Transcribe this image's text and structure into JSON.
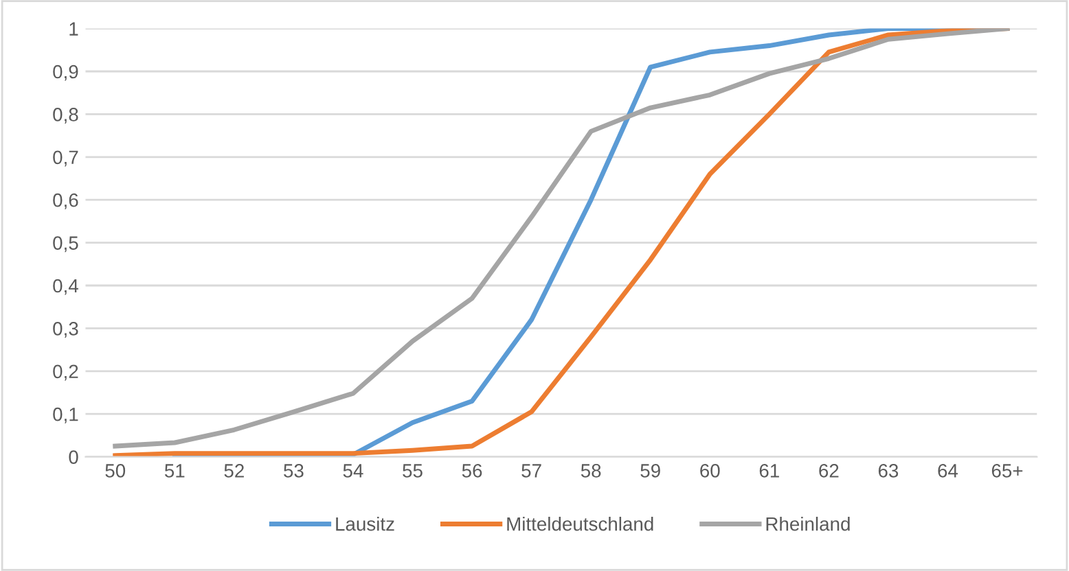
{
  "chart_data": {
    "type": "line",
    "categories": [
      "50",
      "51",
      "52",
      "53",
      "54",
      "55",
      "56",
      "57",
      "58",
      "59",
      "60",
      "61",
      "62",
      "63",
      "64",
      "65+"
    ],
    "series": [
      {
        "name": "Lausitz",
        "color": "#5b9bd5",
        "values": [
          null,
          0.005,
          0.005,
          0.005,
          0.005,
          0.08,
          0.13,
          0.32,
          0.6,
          0.91,
          0.945,
          0.96,
          0.985,
          1.0,
          1.0,
          1.0
        ]
      },
      {
        "name": "Mitteldeutschland",
        "color": "#ed7d31",
        "values": [
          0.003,
          0.008,
          0.008,
          0.008,
          0.008,
          0.015,
          0.025,
          0.105,
          0.28,
          0.46,
          0.66,
          0.8,
          0.945,
          0.985,
          0.995,
          1.0
        ]
      },
      {
        "name": "Rheinland",
        "color": "#a5a5a5",
        "values": [
          0.025,
          0.033,
          0.063,
          0.105,
          0.148,
          0.27,
          0.37,
          0.56,
          0.76,
          0.815,
          0.845,
          0.895,
          0.93,
          0.975,
          0.988,
          1.0
        ]
      }
    ],
    "ylim": [
      0,
      1
    ],
    "yticks": [
      {
        "value": 0,
        "label": "0"
      },
      {
        "value": 0.1,
        "label": "0,1"
      },
      {
        "value": 0.2,
        "label": "0,2"
      },
      {
        "value": 0.3,
        "label": "0,3"
      },
      {
        "value": 0.4,
        "label": "0,4"
      },
      {
        "value": 0.5,
        "label": "0,5"
      },
      {
        "value": 0.6,
        "label": "0,6"
      },
      {
        "value": 0.7,
        "label": "0,7"
      },
      {
        "value": 0.8,
        "label": "0,8"
      },
      {
        "value": 0.9,
        "label": "0,9"
      },
      {
        "value": 1,
        "label": "1"
      }
    ],
    "grid": "y",
    "legend": "bottom",
    "marker": "none",
    "line_style": "solid"
  }
}
